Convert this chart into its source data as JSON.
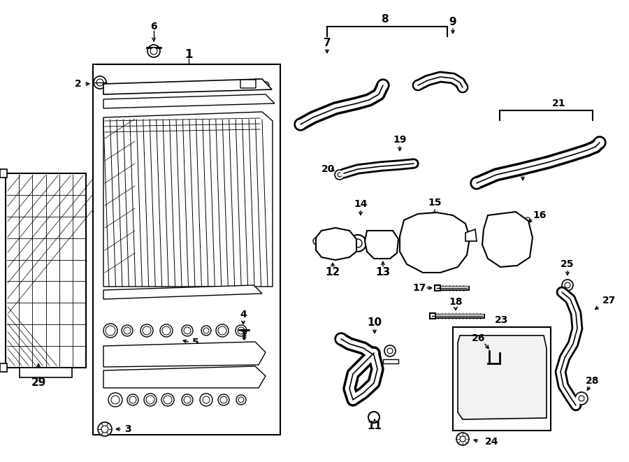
{
  "bg": "#ffffff",
  "lc": "#000000",
  "fig_w": 9.0,
  "fig_h": 6.61,
  "dpi": 100
}
